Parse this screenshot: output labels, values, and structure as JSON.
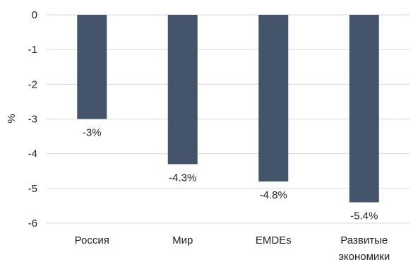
{
  "chart_data": {
    "type": "bar",
    "ylabel": "%",
    "categories": [
      [
        "Россия"
      ],
      [
        "Мир"
      ],
      [
        "EMDEs"
      ],
      [
        "Развитые",
        "экономики"
      ]
    ],
    "values": [
      -3,
      -4.3,
      -4.8,
      -5.4
    ],
    "data_labels": [
      "-3%",
      "-4.3%",
      "-4.8%",
      "-5.4%"
    ],
    "ylim": [
      -6,
      0
    ],
    "yticks": [
      0,
      -1,
      -2,
      -3,
      -4,
      -5,
      -6
    ],
    "ytick_labels": [
      "0",
      "-1",
      "-2",
      "-3",
      "-4",
      "-5",
      "-6"
    ],
    "bar_color": "#44546a",
    "grid": true,
    "legend": "none"
  }
}
